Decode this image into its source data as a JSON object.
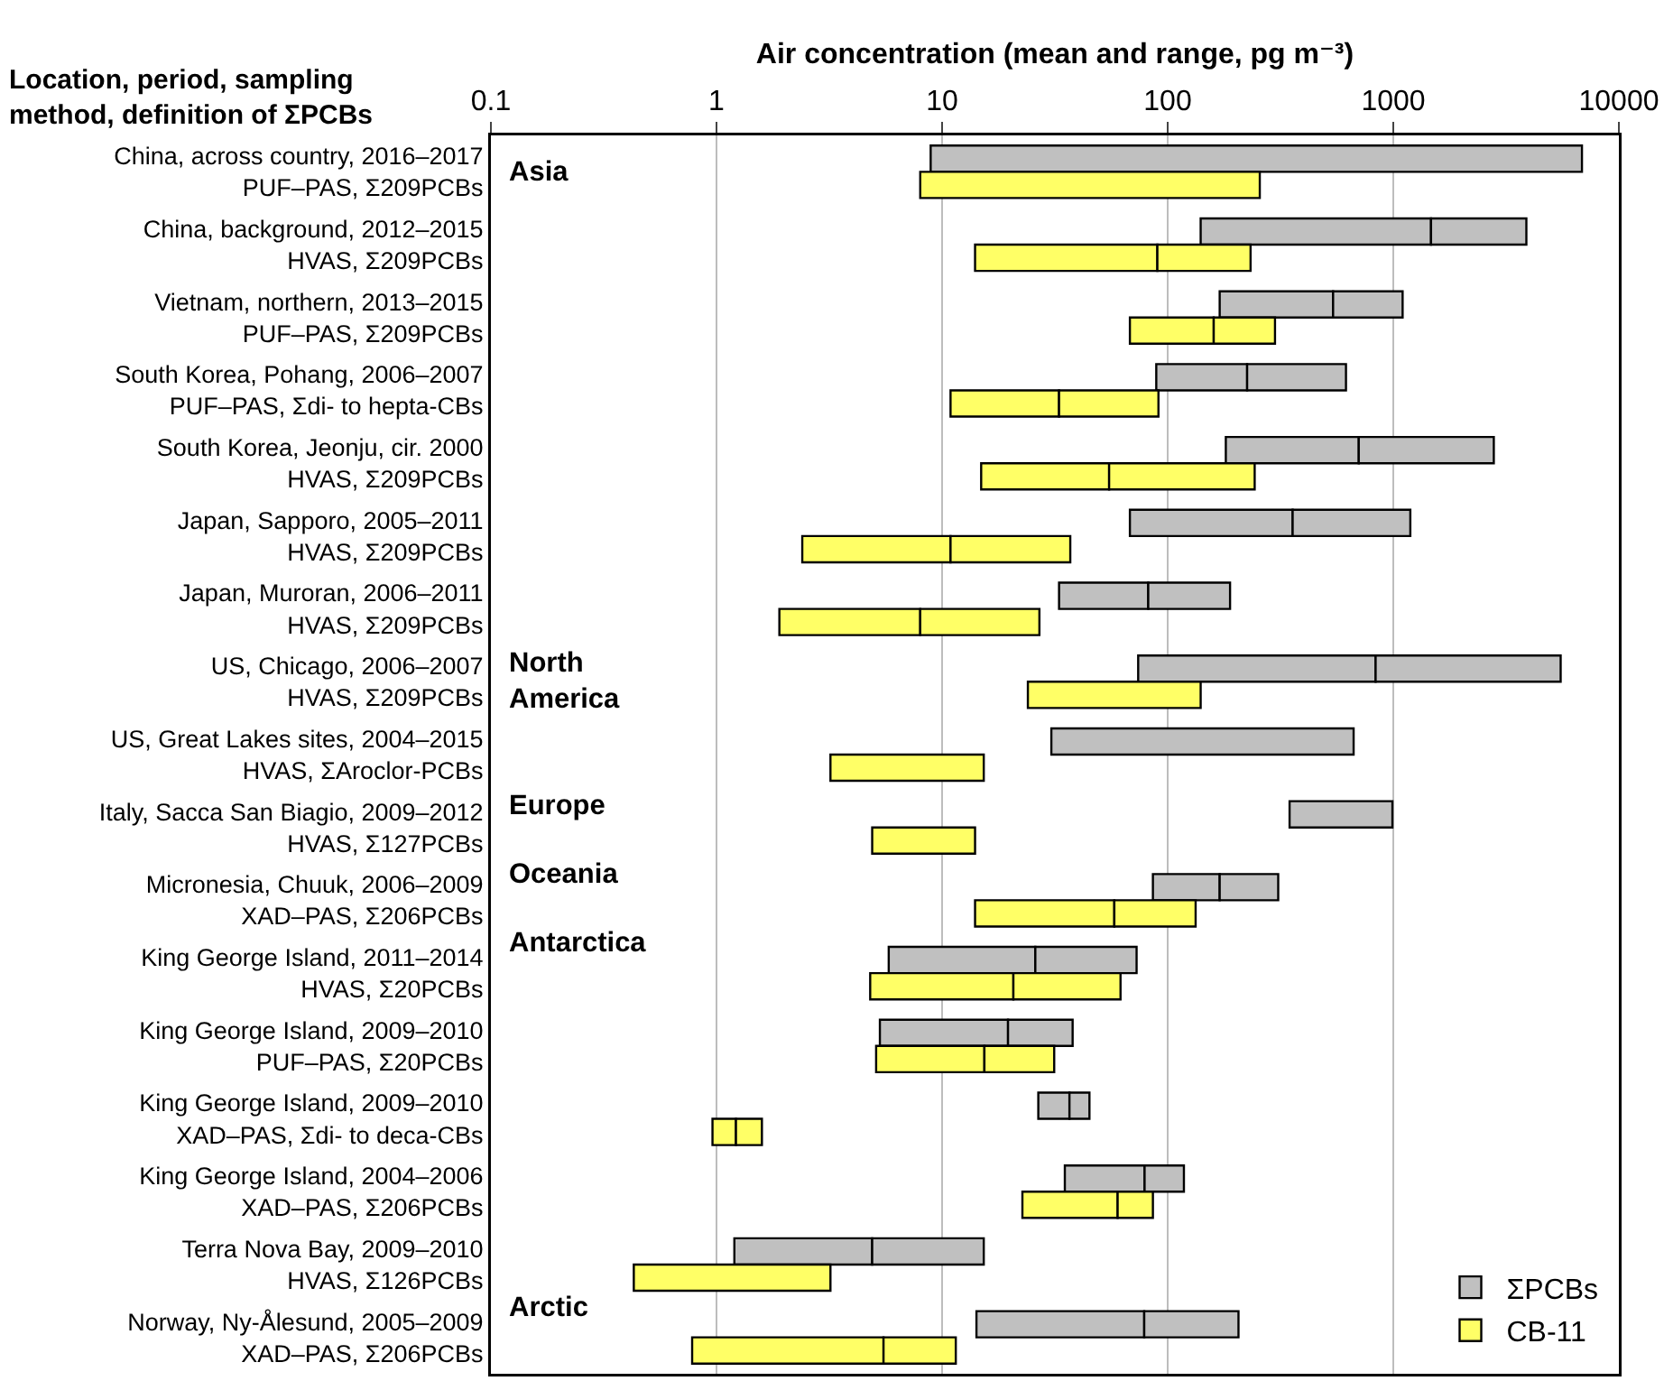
{
  "chart_data": {
    "type": "bar",
    "orientation": "horizontal",
    "xlabel": "Air concentration (mean and range, pg m⁻³)",
    "ylabel": "Location, period, sampling\nmethod, definition of ΣPCBs",
    "categories": [
      "China, across country, 2016–2017\nPUF–PAS, Σ209PCBs",
      "China, background, 2012–2015\nHVAS, Σ209PCBs",
      "Vietnam, northern, 2013–2015\nPUF–PAS, Σ209PCBs",
      "South Korea, Pohang, 2006–2007\nPUF–PAS, Σdi- to hepta-CBs",
      "South Korea, Jeonju, cir. 2000\nHVAS, Σ209PCBs",
      "Japan, Sapporo, 2005–2011\nHVAS, Σ209PCBs",
      "Japan, Muroran, 2006–2011\nHVAS, Σ209PCBs",
      "US, Chicago, 2006–2007\nHVAS, Σ209PCBs",
      "US, Great Lakes sites, 2004–2015\nHVAS, ΣAroclor-PCBs",
      "Italy, Sacca San Biagio, 2009–2012\nHVAS, Σ127PCBs",
      "Micronesia, Chuuk, 2006–2009\nXAD–PAS, Σ206PCBs",
      "King George Island, 2011–2014\nHVAS, Σ20PCBs",
      "King George Island, 2009–2010\nPUF–PAS, Σ20PCBs",
      "King George Island, 2009–2010\nXAD–PAS, Σdi- to deca-CBs",
      "King George Island, 2004–2006\nXAD–PAS, Σ206PCBs",
      "Terra Nova Bay, 2009–2010\nHVAS, Σ126PCBs",
      "Norway, Ny-Ålesund, 2005–2009\nXAD–PAS, Σ206PCBs"
    ],
    "series": [
      {
        "name": "ΣPCBs",
        "color": "#c0c0c0",
        "base": [
          8.9,
          140,
          170,
          89,
          181,
          68,
          33,
          74,
          30.5,
          347,
          86,
          5.8,
          5.3,
          26.7,
          35,
          1.2,
          14.2
        ],
        "values": [
          6851,
          1330,
          371,
          136,
          522,
          290,
          49,
          761,
          636.5,
          644,
          84,
          20.1,
          14.3,
          10,
          44,
          3.7,
          64.5
        ]
      },
      {
        "color": "#c0c0c0",
        "base": [
          null,
          1470,
          541,
          225,
          703,
          358,
          82,
          835,
          null,
          null,
          170,
          25.9,
          19.6,
          36.7,
          79,
          4.9,
          78.7
        ],
        "values": [
          null,
          2420,
          559,
          392,
          2087,
          832,
          107,
          4685,
          null,
          null,
          139,
          46.9,
          18.3,
          8.3,
          39,
          10.4,
          127.3
        ]
      },
      {
        "name": "CB-11",
        "color": "#ffff66",
        "base": [
          8,
          14,
          68,
          10.9,
          14.9,
          2.4,
          1.9,
          24,
          3.2,
          4.9,
          14,
          4.8,
          5.1,
          0.96,
          22.7,
          0.43,
          0.78
        ],
        "values": [
          248,
          76,
          92,
          22.1,
          40.1,
          8.5,
          6.1,
          116,
          12.1,
          9.1,
          44,
          15.9,
          10.3,
          0.26,
          37.3,
          2.77,
          4.72
        ]
      },
      {
        "color": "#ffff66",
        "base": [
          null,
          90,
          160,
          33,
          55,
          10.9,
          8,
          null,
          null,
          null,
          58,
          20.7,
          15.4,
          1.22,
          60,
          null,
          5.5
        ],
        "values": [
          null,
          143,
          139,
          58,
          188,
          26.1,
          19,
          null,
          null,
          null,
          75,
          41.1,
          16,
          0.37,
          26,
          null,
          6.0
        ]
      }
    ],
    "log": "x",
    "xlim": [
      0.1,
      10000
    ],
    "xticks": [
      0.1,
      1,
      10,
      100,
      1000,
      10000
    ],
    "grid": "x",
    "legend": "bottom right",
    "annotations": [
      "Asia",
      "North\nAmerica",
      "Europe",
      "Oceania",
      "Antarctica",
      "Arctic"
    ]
  }
}
